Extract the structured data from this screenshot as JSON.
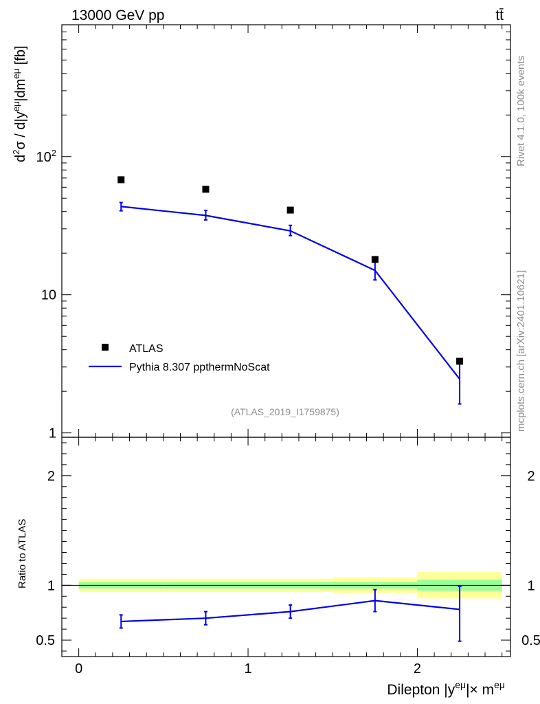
{
  "header": {
    "energy_label": "13000 GeV pp",
    "process_label": "tt̄"
  },
  "side_labels": {
    "rivet": "Rivet 4.1.0,  100k events",
    "mcplots": "mcplots.cern.ch [arXiv:2401.10621]"
  },
  "analysis_id": "(ATLAS_2019_I1759875)",
  "legend": {
    "data_label": "ATLAS",
    "mc_label": "Pythia 8.307 ppthermNoScat"
  },
  "colors": {
    "data": "#000000",
    "mc": "#0000e6",
    "band_inner": "#99ff99",
    "band_outer": "#ffff99"
  },
  "chart_data": [
    {
      "type": "scatter",
      "panel": "main",
      "scale": "log",
      "ylabel": "d²σ / d|yeμ|dmeμ [fb]",
      "ylim": [
        0.93,
        900
      ],
      "yticks": [
        {
          "value": 1,
          "label": "1"
        },
        {
          "value": 10,
          "label": "10"
        },
        {
          "value": 100,
          "label": "10²"
        }
      ],
      "series": [
        {
          "name": "ATLAS",
          "style": "markers",
          "x": [
            0.25,
            0.75,
            1.25,
            1.75,
            2.25
          ],
          "values": [
            68,
            58,
            41,
            18,
            3.3
          ]
        },
        {
          "name": "Pythia 8.307 ppthermNoScat",
          "style": "line",
          "x": [
            0.25,
            0.75,
            1.25,
            1.75,
            2.25
          ],
          "values": [
            43.5,
            37.5,
            29,
            15,
            2.45
          ],
          "err_low": [
            40.5,
            34.8,
            26.8,
            12.8,
            1.62
          ],
          "err_high": [
            46.5,
            40.8,
            31.8,
            17.3,
            3.3
          ]
        }
      ]
    },
    {
      "type": "line",
      "panel": "ratio",
      "ylabel": "Ratio to ATLAS",
      "xlabel": "Dilepton |yeμ|× meμ",
      "xlim": [
        -0.1,
        2.55
      ],
      "ylim": [
        0.35,
        2.35
      ],
      "xticks": [
        {
          "value": 0,
          "label": "0"
        },
        {
          "value": 1,
          "label": "1"
        },
        {
          "value": 2,
          "label": "2"
        }
      ],
      "yticks": [
        {
          "value": 0.5,
          "label": "0.5"
        },
        {
          "value": 1,
          "label": "1"
        },
        {
          "value": 2,
          "label": "2"
        }
      ],
      "bands": [
        {
          "x_low": 0.0,
          "x_high": 0.5,
          "inner": [
            0.97,
            1.03
          ],
          "outer": [
            0.94,
            1.06
          ]
        },
        {
          "x_low": 0.5,
          "x_high": 1.0,
          "inner": [
            0.97,
            1.03
          ],
          "outer": [
            0.94,
            1.06
          ]
        },
        {
          "x_low": 1.0,
          "x_high": 1.5,
          "inner": [
            0.97,
            1.03
          ],
          "outer": [
            0.94,
            1.06
          ]
        },
        {
          "x_low": 1.5,
          "x_high": 2.0,
          "inner": [
            0.97,
            1.03
          ],
          "outer": [
            0.93,
            1.07
          ]
        },
        {
          "x_low": 2.0,
          "x_high": 2.5,
          "inner": [
            0.95,
            1.05
          ],
          "outer": [
            0.88,
            1.12
          ]
        }
      ],
      "series": [
        {
          "name": "Pythia 8.307 ppthermNoScat / ATLAS",
          "x": [
            0.25,
            0.75,
            1.25,
            1.75,
            2.25
          ],
          "values": [
            0.67,
            0.7,
            0.76,
            0.86,
            0.78
          ],
          "err_low": [
            0.61,
            0.64,
            0.7,
            0.76,
            0.49
          ],
          "err_high": [
            0.73,
            0.76,
            0.82,
            0.96,
            0.99
          ]
        }
      ]
    }
  ]
}
